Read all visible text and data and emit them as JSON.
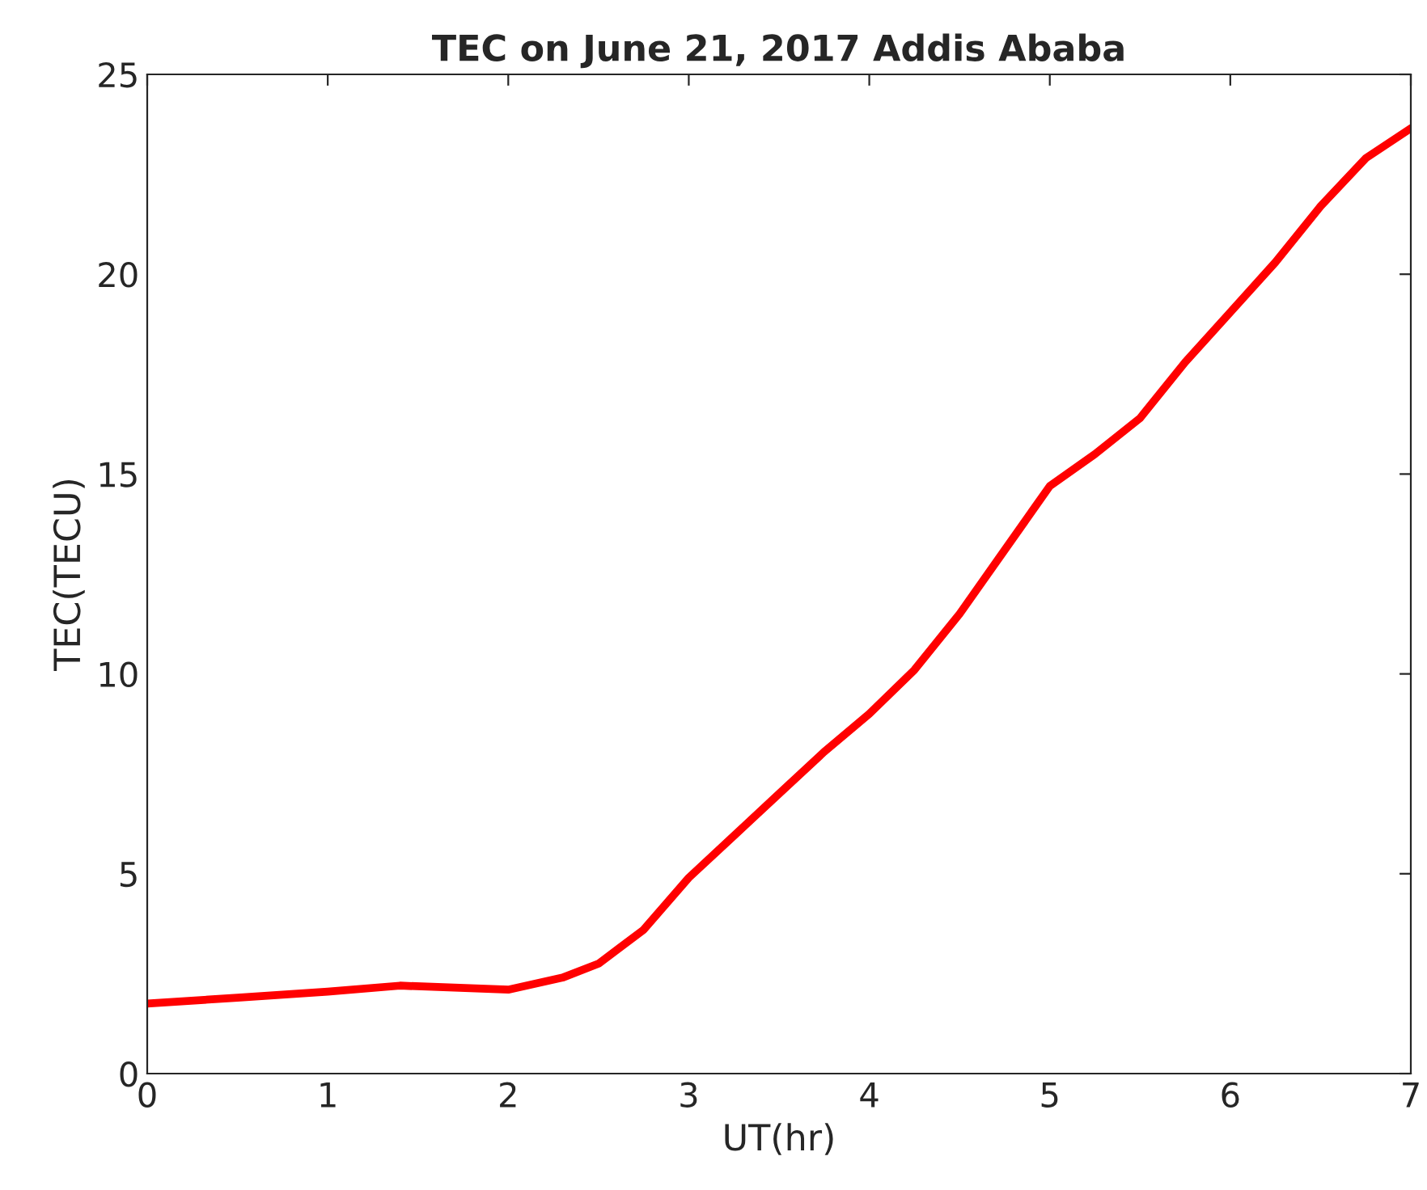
{
  "chart_data": {
    "type": "line",
    "title": "TEC on June 21, 2017 Addis Ababa",
    "xlabel": "UT(hr)",
    "ylabel": "TEC(TECU)",
    "series": [
      {
        "color": "#ff0000",
        "x": [
          0,
          0.5,
          1,
          1.4,
          2,
          2.3,
          2.5,
          2.75,
          3,
          3.25,
          3.5,
          3.75,
          4,
          4.25,
          4.5,
          4.75,
          5,
          5.25,
          5.5,
          5.75,
          6,
          6.25,
          6.5,
          6.75,
          7
        ],
        "values": [
          1.75,
          1.9,
          2.05,
          2.2,
          2.1,
          2.4,
          2.75,
          3.6,
          4.9,
          5.95,
          7.0,
          8.05,
          9.0,
          10.1,
          11.5,
          13.1,
          14.7,
          15.5,
          16.4,
          17.8,
          19.05,
          20.3,
          21.7,
          22.9,
          23.65
        ]
      }
    ],
    "xlim": [
      0,
      7
    ],
    "xticks": [
      0,
      1,
      2,
      3,
      4,
      5,
      6,
      7
    ],
    "ylim": [
      0,
      25
    ],
    "yticks": [
      0,
      5,
      10,
      15,
      20,
      25
    ],
    "grid": false,
    "line_style": "solid",
    "marker": "none"
  }
}
